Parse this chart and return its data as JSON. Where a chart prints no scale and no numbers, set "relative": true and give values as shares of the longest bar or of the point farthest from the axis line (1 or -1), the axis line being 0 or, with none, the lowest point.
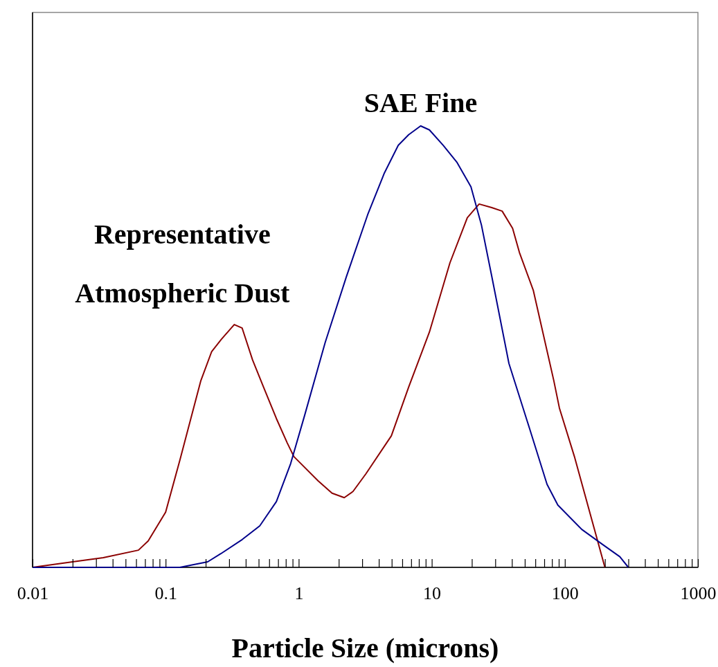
{
  "chart_data": {
    "type": "line",
    "relative": true,
    "xlabel": "Particle Size (microns)",
    "log": "x",
    "grid": false,
    "legend": false,
    "marker": "none",
    "line_style": "solid",
    "xlim": [
      0.01,
      1000
    ],
    "xticks": [
      0.01,
      {
        "value": 0.02,
        "label": null
      },
      {
        "value": 0.03,
        "label": null
      },
      {
        "value": 0.04,
        "label": null
      },
      {
        "value": 0.05,
        "label": null
      },
      {
        "value": 0.06,
        "label": null
      },
      {
        "value": 0.07,
        "label": null
      },
      {
        "value": 0.08,
        "label": null
      },
      {
        "value": 0.09,
        "label": null
      },
      0.1,
      {
        "value": 0.2,
        "label": null
      },
      {
        "value": 0.3,
        "label": null
      },
      {
        "value": 0.4,
        "label": null
      },
      {
        "value": 0.5,
        "label": null
      },
      {
        "value": 0.6,
        "label": null
      },
      {
        "value": 0.7,
        "label": null
      },
      {
        "value": 0.8,
        "label": null
      },
      {
        "value": 0.9,
        "label": null
      },
      1,
      {
        "value": 2,
        "label": null
      },
      {
        "value": 3,
        "label": null
      },
      {
        "value": 4,
        "label": null
      },
      {
        "value": 5,
        "label": null
      },
      {
        "value": 6,
        "label": null
      },
      {
        "value": 7,
        "label": null
      },
      {
        "value": 8,
        "label": null
      },
      {
        "value": 9,
        "label": null
      },
      10,
      {
        "value": 20,
        "label": null
      },
      {
        "value": 30,
        "label": null
      },
      {
        "value": 40,
        "label": null
      },
      {
        "value": 50,
        "label": null
      },
      {
        "value": 60,
        "label": null
      },
      {
        "value": 70,
        "label": null
      },
      {
        "value": 80,
        "label": null
      },
      {
        "value": 90,
        "label": null
      },
      100,
      {
        "value": 200,
        "label": null
      },
      {
        "value": 300,
        "label": null
      },
      {
        "value": 400,
        "label": null
      },
      {
        "value": 500,
        "label": null
      },
      {
        "value": 600,
        "label": null
      },
      {
        "value": 700,
        "label": null
      },
      {
        "value": 800,
        "label": null
      },
      {
        "value": 900,
        "label": null
      },
      1000
    ],
    "series": [
      {
        "name": "Representative Atmospheric Dust",
        "color": "#8b0000",
        "x": [
          0.01,
          0.02,
          0.034,
          0.0625,
          0.074,
          0.1,
          0.128,
          0.184,
          0.222,
          0.263,
          0.328,
          0.376,
          0.45,
          0.54,
          0.68,
          0.82,
          0.92,
          1.4,
          1.78,
          2.2,
          2.56,
          3.2,
          4.97,
          6.7,
          9.6,
          13.7,
          18.5,
          22.7,
          28.2,
          33.8,
          40.5,
          45.6,
          58,
          82.6,
          91,
          118,
          200
        ],
        "values": [
          0,
          0.0125,
          0.022,
          0.039,
          0.06,
          0.125,
          0.243,
          0.423,
          0.489,
          0.517,
          0.55,
          0.542,
          0.47,
          0.411,
          0.337,
          0.282,
          0.251,
          0.196,
          0.168,
          0.158,
          0.172,
          0.212,
          0.298,
          0.408,
          0.533,
          0.69,
          0.792,
          0.823,
          0.815,
          0.807,
          0.768,
          0.713,
          0.627,
          0.423,
          0.361,
          0.251,
          0
        ]
      },
      {
        "name": "SAE Fine",
        "color": "#00008b",
        "x": [
          0.01,
          0.128,
          0.207,
          0.26,
          0.376,
          0.51,
          0.68,
          0.87,
          1.11,
          1.58,
          2.28,
          3.3,
          4.4,
          5.6,
          6.7,
          8.25,
          9.6,
          12.2,
          15.5,
          19.7,
          23.6,
          28.3,
          38,
          54.5,
          73.5,
          88.6,
          134,
          192,
          259,
          300
        ],
        "values": [
          0,
          0,
          0.0125,
          0.031,
          0.063,
          0.094,
          0.149,
          0.235,
          0.345,
          0.509,
          0.658,
          0.799,
          0.893,
          0.956,
          0.98,
          1,
          0.991,
          0.956,
          0.917,
          0.862,
          0.776,
          0.658,
          0.462,
          0.313,
          0.188,
          0.141,
          0.086,
          0.052,
          0.024,
          0
        ]
      }
    ]
  }
}
